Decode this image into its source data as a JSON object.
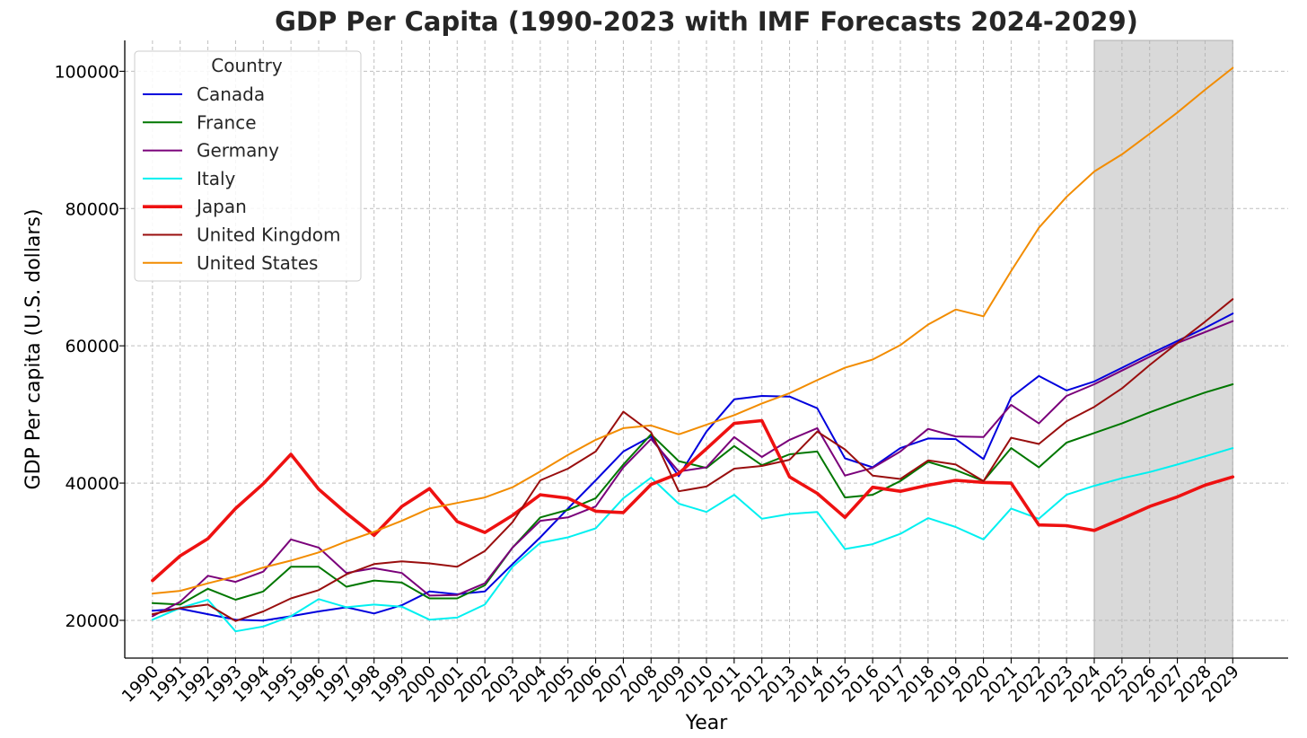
{
  "chart_data": {
    "type": "line",
    "title": "GDP Per Capita (1990-2023 with IMF Forecasts 2024-2029)",
    "xlabel": "Year",
    "ylabel": "GDP Per capita (U.S. dollars)",
    "xlim": [
      1989.0,
      2031.0
    ],
    "ylim": [
      14500,
      104500
    ],
    "yticks": [
      20000,
      40000,
      60000,
      80000,
      100000
    ],
    "grid": true,
    "legend_title": "Country",
    "legend_position": "top-left",
    "forecast_shade": {
      "from": 2024,
      "to": 2029,
      "color": "#d9d9d9"
    },
    "x": [
      1990,
      1991,
      1992,
      1993,
      1994,
      1995,
      1996,
      1997,
      1998,
      1999,
      2000,
      2001,
      2002,
      2003,
      2004,
      2005,
      2006,
      2007,
      2008,
      2009,
      2010,
      2011,
      2012,
      2013,
      2014,
      2015,
      2016,
      2017,
      2018,
      2019,
      2020,
      2021,
      2022,
      2023,
      2024,
      2025,
      2026,
      2027,
      2028,
      2029
    ],
    "series": [
      {
        "name": "Canada",
        "color": "#0000dd",
        "width": 2,
        "values": [
          21400,
          21700,
          20900,
          20100,
          19950,
          20600,
          21300,
          21900,
          21000,
          22200,
          24200,
          23800,
          24200,
          28200,
          32100,
          36300,
          40400,
          44600,
          46800,
          41000,
          47500,
          52200,
          52700,
          52600,
          50900,
          43600,
          42300,
          45100,
          46500,
          46400,
          43500,
          52500,
          55600,
          53500,
          54800,
          56800,
          58800,
          60700,
          62600,
          64700
        ]
      },
      {
        "name": "France",
        "color": "#007700",
        "width": 2,
        "values": [
          22500,
          22300,
          24600,
          23000,
          24200,
          27800,
          27800,
          24900,
          25800,
          25500,
          23200,
          23200,
          25100,
          30600,
          35000,
          36100,
          37800,
          42700,
          47100,
          43200,
          42200,
          45400,
          42600,
          44200,
          44600,
          37900,
          38300,
          40300,
          43100,
          41900,
          40300,
          45100,
          42300,
          45900,
          47300,
          48700,
          50300,
          51800,
          53200,
          54400
        ]
      },
      {
        "name": "Germany",
        "color": "#7a007a",
        "width": 2,
        "values": [
          20600,
          22700,
          26500,
          25600,
          27100,
          31800,
          30600,
          26900,
          27600,
          26900,
          23600,
          23700,
          25400,
          30600,
          34500,
          35000,
          36600,
          42300,
          46400,
          41700,
          42300,
          46700,
          43800,
          46300,
          48000,
          41100,
          42200,
          44600,
          47900,
          46800,
          46700,
          51400,
          48700,
          52700,
          54400,
          56400,
          58400,
          60400,
          62000,
          63600
        ]
      },
      {
        "name": "Italy",
        "color": "#00f0f0",
        "width": 2,
        "values": [
          20100,
          21800,
          23000,
          18400,
          19100,
          20600,
          23100,
          21900,
          22300,
          22000,
          20100,
          20400,
          22300,
          27800,
          31300,
          32100,
          33400,
          37800,
          40800,
          37000,
          35800,
          38300,
          34800,
          35500,
          35800,
          30400,
          31100,
          32600,
          34900,
          33600,
          31800,
          36300,
          34800,
          38300,
          39600,
          40700,
          41600,
          42700,
          43900,
          45100
        ]
      },
      {
        "name": "Japan",
        "color": "#ee1111",
        "width": 3.6,
        "values": [
          25800,
          29400,
          31900,
          36300,
          39900,
          44200,
          39100,
          35600,
          32400,
          36600,
          39200,
          34400,
          32800,
          35300,
          38300,
          37800,
          35900,
          35700,
          39800,
          41400,
          45000,
          48700,
          49100,
          40900,
          38500,
          35000,
          39400,
          38800,
          39700,
          40400,
          40100,
          40000,
          33900,
          33800,
          33100,
          34800,
          36600,
          38000,
          39700,
          40900
        ]
      },
      {
        "name": "United Kingdom",
        "color": "#990e0e",
        "width": 2,
        "values": [
          20900,
          21800,
          22300,
          19900,
          21300,
          23200,
          24400,
          26700,
          28200,
          28600,
          28300,
          27800,
          30100,
          34300,
          40400,
          42100,
          44600,
          50400,
          47400,
          38800,
          39500,
          42100,
          42500,
          43400,
          47500,
          44900,
          41100,
          40600,
          43300,
          42700,
          40300,
          46600,
          45700,
          49000,
          51100,
          53800,
          57200,
          60400,
          63500,
          66800
        ]
      },
      {
        "name": "United States",
        "color": "#f28c00",
        "width": 2,
        "values": [
          23900,
          24300,
          25400,
          26400,
          27700,
          28700,
          29900,
          31500,
          32900,
          34500,
          36300,
          37100,
          37900,
          39400,
          41700,
          44100,
          46300,
          48000,
          48400,
          47100,
          48500,
          49900,
          51600,
          53100,
          55000,
          56800,
          58000,
          60100,
          63100,
          65300,
          64300,
          70900,
          77200,
          81700,
          85400,
          87900,
          90900,
          94000,
          97300,
          100500
        ]
      }
    ]
  }
}
